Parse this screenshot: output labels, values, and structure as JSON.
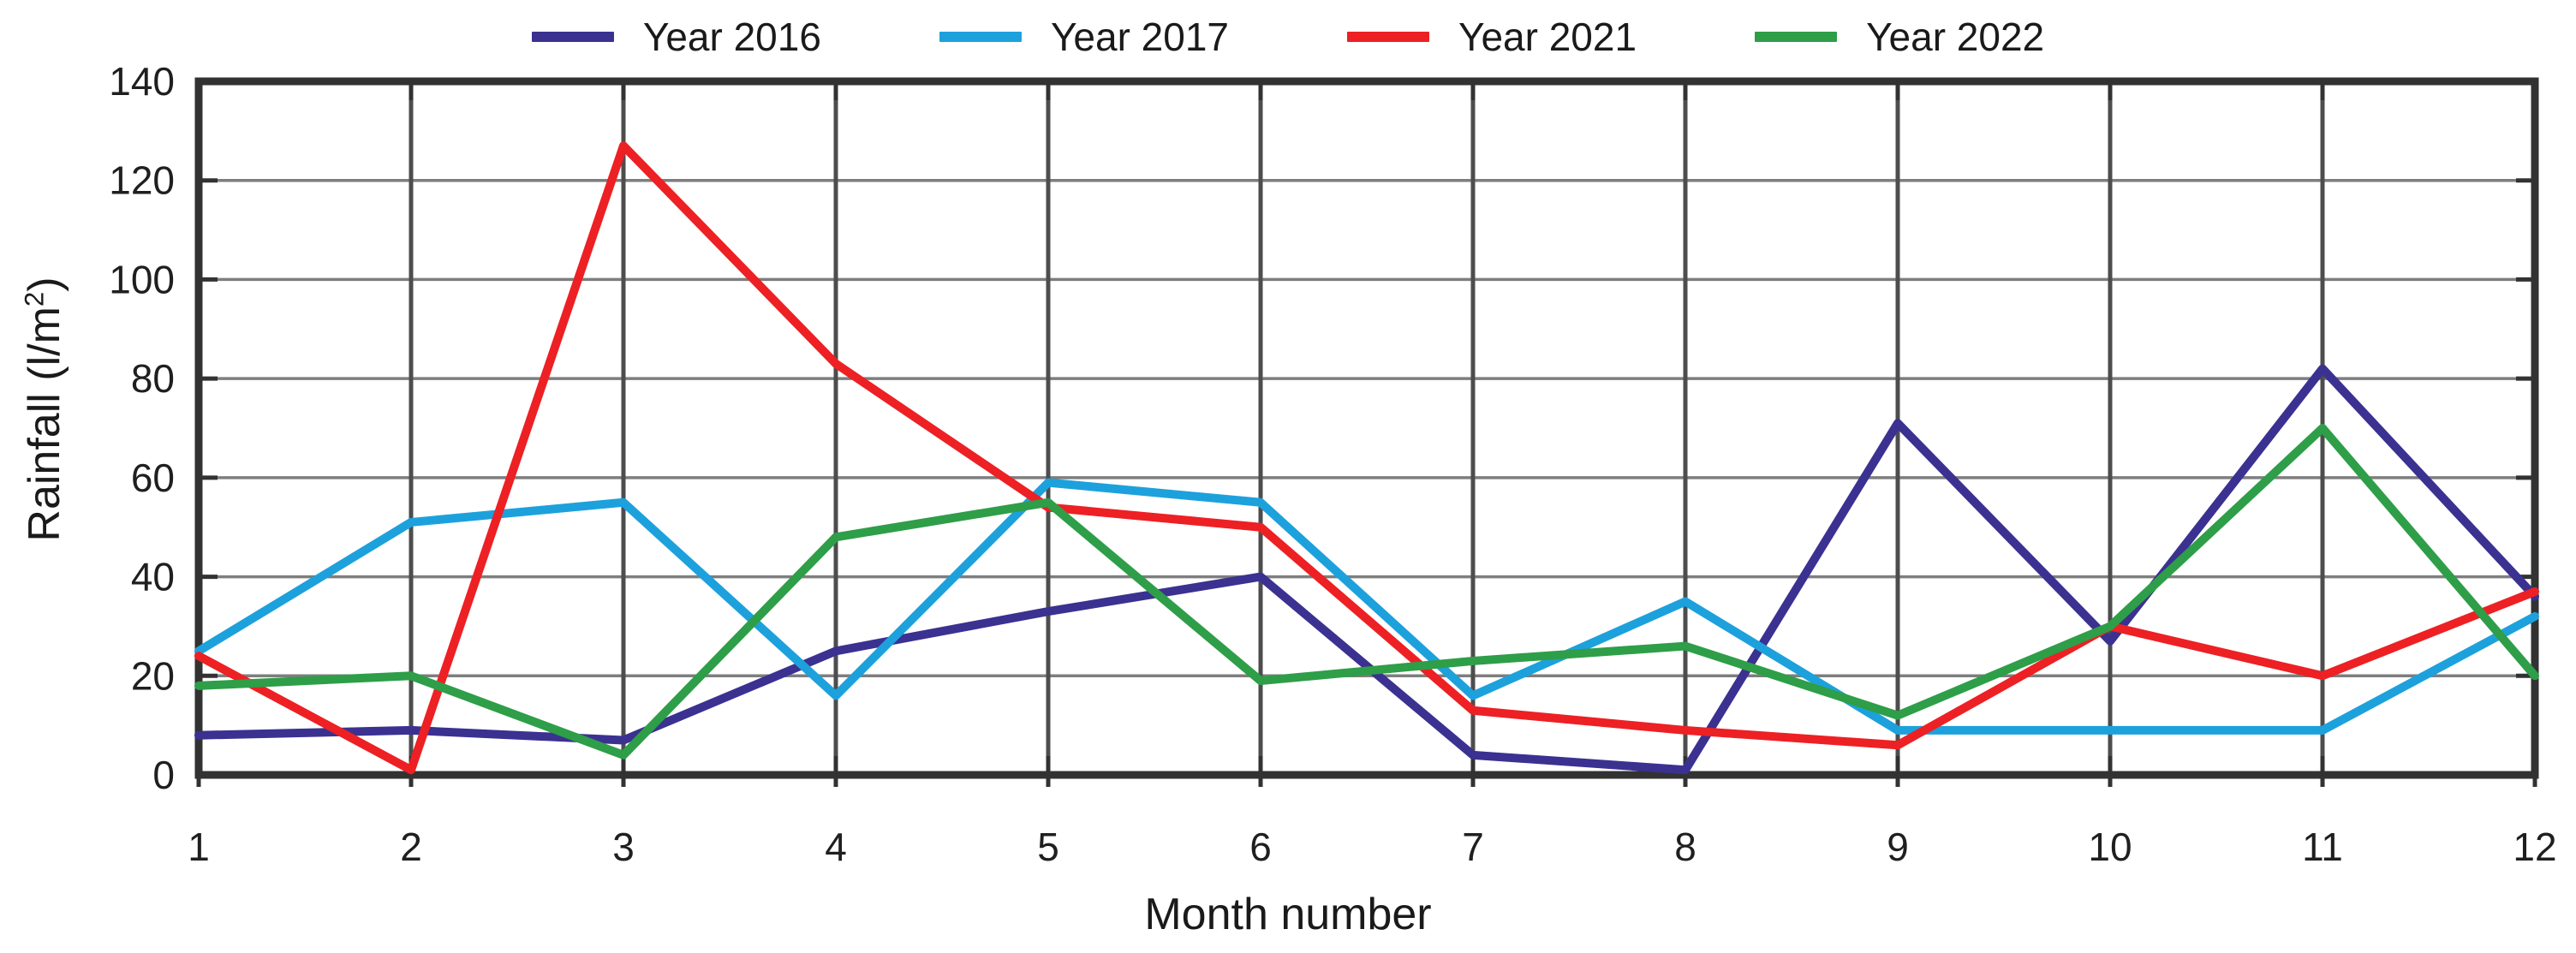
{
  "chart_data": {
    "type": "line",
    "title": "",
    "xlabel": "Month number",
    "ylabel": "Rainfall (l/m2)",
    "ylabel_base": "Rainfall (l/m",
    "ylabel_sup": "2",
    "ylabel_end": ")",
    "x": [
      1,
      2,
      3,
      4,
      5,
      6,
      7,
      8,
      9,
      10,
      11,
      12
    ],
    "xticks": [
      "1",
      "2",
      "3",
      "4",
      "5",
      "6",
      "7",
      "8",
      "9",
      "10",
      "11",
      "12"
    ],
    "yticks": [
      "0",
      "20",
      "40",
      "60",
      "80",
      "100",
      "120",
      "140"
    ],
    "ylim": [
      0,
      140
    ],
    "ytick_step": 20,
    "grid": true,
    "legend_position": "top-center",
    "series": [
      {
        "name": "Year 2016",
        "color": "#3b3191",
        "values": [
          8,
          9,
          7,
          25,
          33,
          40,
          4,
          1,
          71,
          27,
          82,
          36
        ]
      },
      {
        "name": "Year 2017",
        "color": "#1da1dc",
        "values": [
          25,
          51,
          55,
          16,
          59,
          55,
          16,
          35,
          9,
          9,
          9,
          32
        ]
      },
      {
        "name": "Year 2021",
        "color": "#ed2024",
        "values": [
          24,
          1,
          127,
          83,
          54,
          50,
          13,
          9,
          6,
          30,
          20,
          37
        ]
      },
      {
        "name": "Year 2022",
        "color": "#2e9e48",
        "values": [
          18,
          20,
          4,
          48,
          55,
          19,
          23,
          26,
          12,
          30,
          70,
          20
        ]
      }
    ],
    "style": {
      "background": "#ffffff",
      "grid_color_horizontal": "#7e7e7e",
      "grid_color_vertical": "#4d4d4d",
      "border_color": "#323232",
      "tick_color": "#323232",
      "tick_label_color": "#1f1f1f"
    }
  }
}
